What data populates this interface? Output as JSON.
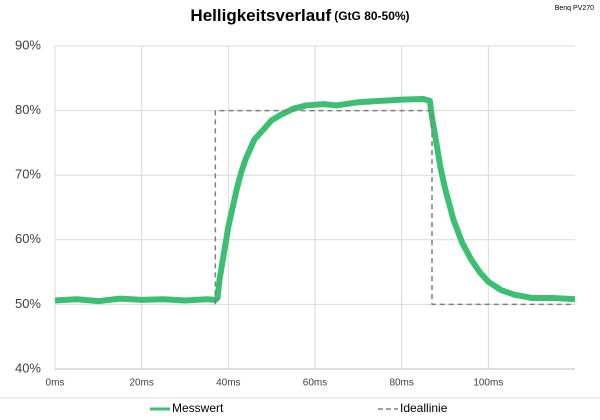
{
  "chart_data": {
    "type": "line",
    "title": "Helligkeitsverlauf",
    "subtitle": "(GtG 80-50%)",
    "annotation": "Benq PV270",
    "xlim": [
      0,
      120
    ],
    "ylim": [
      40,
      90
    ],
    "xticks": [
      {
        "value": 0,
        "label": "0ms"
      },
      {
        "value": 20,
        "label": "20ms"
      },
      {
        "value": 40,
        "label": "40ms"
      },
      {
        "value": 60,
        "label": "60ms"
      },
      {
        "value": 80,
        "label": "80ms"
      },
      {
        "value": 100,
        "label": "100ms"
      }
    ],
    "yticks": [
      {
        "value": 40,
        "label": "40%"
      },
      {
        "value": 50,
        "label": "50%"
      },
      {
        "value": 60,
        "label": "60%"
      },
      {
        "value": 70,
        "label": "70%"
      },
      {
        "value": 80,
        "label": "80%"
      },
      {
        "value": 90,
        "label": "90%"
      }
    ],
    "grid": true,
    "legend": "bottom",
    "series": [
      {
        "name": "Messwert",
        "color": "#3cbf72",
        "style": "solid",
        "x": [
          0,
          5,
          10,
          15,
          20,
          25,
          30,
          35,
          37,
          37.5,
          38,
          39,
          40,
          41,
          42,
          43,
          44,
          45,
          46,
          48,
          50,
          52,
          55,
          58,
          62,
          65,
          70,
          75,
          80,
          85,
          86.5,
          87,
          88,
          89,
          90,
          92,
          94,
          96,
          98,
          100,
          103,
          106,
          110,
          115,
          120
        ],
        "values": [
          50.6,
          50.8,
          50.5,
          50.9,
          50.7,
          50.8,
          50.6,
          50.8,
          50.7,
          51,
          54,
          58,
          62,
          65,
          68,
          70.5,
          72.5,
          74,
          75.5,
          77,
          78.5,
          79.3,
          80.3,
          80.8,
          81,
          80.8,
          81.3,
          81.5,
          81.7,
          81.8,
          81.5,
          79,
          75,
          71,
          68,
          63,
          59.5,
          57,
          55,
          53.5,
          52.2,
          51.5,
          51,
          51,
          50.8
        ]
      },
      {
        "name": "Ideallinie",
        "color": "#7f7f7f",
        "style": "dashed",
        "x": [
          37,
          37,
          87,
          87,
          120
        ],
        "values": [
          50,
          80,
          80,
          50,
          50
        ]
      }
    ]
  }
}
